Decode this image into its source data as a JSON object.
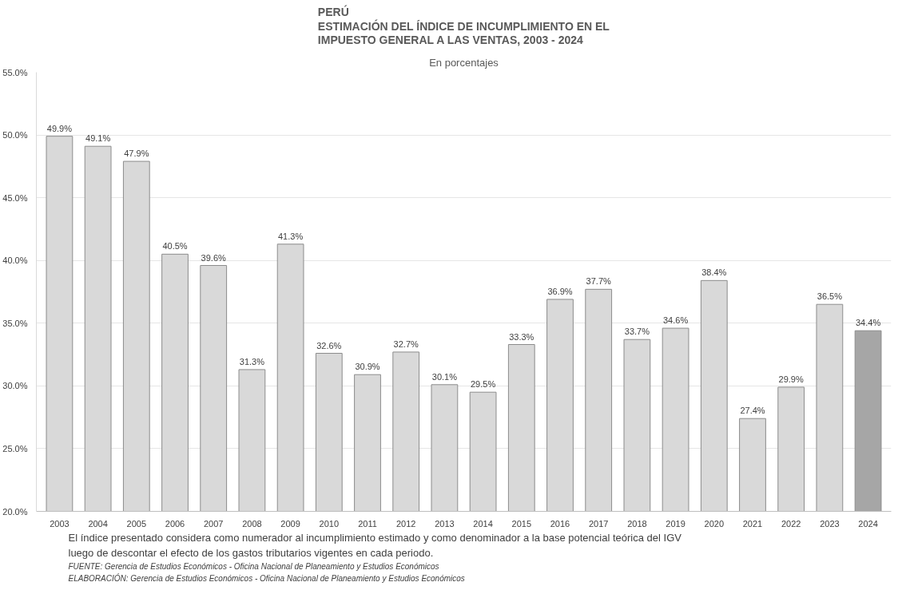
{
  "chart_data": {
    "type": "bar",
    "title": "PERÚ\nESTIMACIÓN DEL ÍNDICE DE INCUMPLIMIENTO EN EL\nIMPUESTO GENERAL A LAS VENTAS, 2003 - 2024",
    "subtitle": "En porcentajes",
    "categories": [
      "2003",
      "2004",
      "2005",
      "2006",
      "2007",
      "2008",
      "2009",
      "2010",
      "2011",
      "2012",
      "2013",
      "2014",
      "2015",
      "2016",
      "2017",
      "2018",
      "2019",
      "2020",
      "2021",
      "2022",
      "2023",
      "2024"
    ],
    "values": [
      49.9,
      49.1,
      47.9,
      40.5,
      39.6,
      31.3,
      41.3,
      32.6,
      30.9,
      32.7,
      30.1,
      29.5,
      33.3,
      36.9,
      37.7,
      33.7,
      34.6,
      38.4,
      27.4,
      29.9,
      36.5,
      34.4
    ],
    "value_labels": [
      "49.9%",
      "49.1%",
      "47.9%",
      "40.5%",
      "39.6%",
      "31.3%",
      "41.3%",
      "32.6%",
      "30.9%",
      "32.7%",
      "30.1%",
      "29.5%",
      "33.3%",
      "36.9%",
      "37.7%",
      "33.7%",
      "34.6%",
      "38.4%",
      "27.4%",
      "29.9%",
      "36.5%",
      "34.4%"
    ],
    "colors": [
      "#d9d9d9",
      "#d9d9d9",
      "#d9d9d9",
      "#d9d9d9",
      "#d9d9d9",
      "#d9d9d9",
      "#d9d9d9",
      "#d9d9d9",
      "#d9d9d9",
      "#d9d9d9",
      "#d9d9d9",
      "#d9d9d9",
      "#d9d9d9",
      "#d9d9d9",
      "#d9d9d9",
      "#d9d9d9",
      "#d9d9d9",
      "#d9d9d9",
      "#d9d9d9",
      "#d9d9d9",
      "#d9d9d9",
      "#a6a6a6"
    ],
    "ylim": [
      20,
      55
    ],
    "yticks": [
      {
        "value": 20,
        "label": "20.0%"
      },
      {
        "value": 25,
        "label": "25.0%"
      },
      {
        "value": 30,
        "label": "30.0%"
      },
      {
        "value": 35,
        "label": "35.0%"
      },
      {
        "value": 40,
        "label": "40.0%"
      },
      {
        "value": 45,
        "label": "45.0%"
      },
      {
        "value": 50,
        "label": "50.0%"
      },
      {
        "value": 55,
        "label": "55.0%"
      }
    ],
    "grid": "y",
    "annotations": [
      "El índice presentado considera como numerador al incumplimiento estimado y como denominador a la base potencial teórica del IGV",
      "luego de descontar el efecto de los gastos tributarios vigentes en cada periodo.",
      "FUENTE: Gerencia de Estudios Económicos - Oficina Nacional de Planeamiento y Estudios Económicos",
      "ELABORACIÓN: Gerencia de Estudios Económicos - Oficina Nacional de Planeamiento y Estudios Económicos"
    ]
  }
}
